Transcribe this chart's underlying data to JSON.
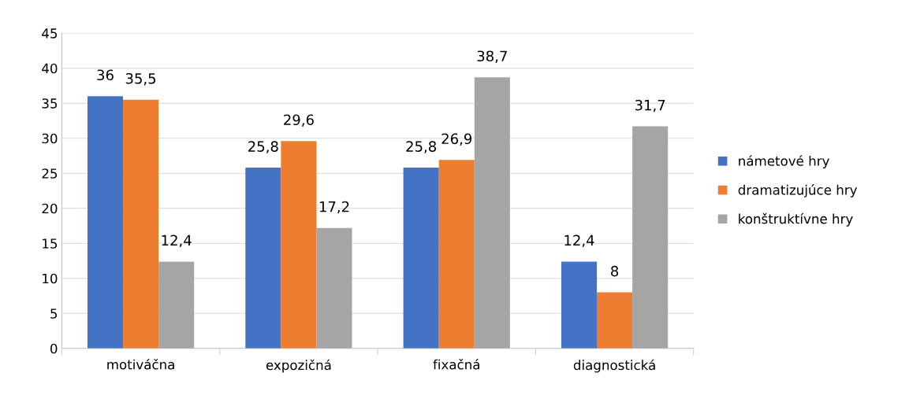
{
  "chart_data": {
    "type": "bar",
    "categories": [
      "motiváčna",
      "expozičná",
      "fixačná",
      "diagnostická"
    ],
    "series": [
      {
        "name": "námetové hry",
        "color": "#4472c4",
        "values": [
          36,
          25.8,
          25.8,
          12.4
        ],
        "value_labels": [
          "36",
          "25,8",
          "25,8",
          "12,4"
        ]
      },
      {
        "name": "dramatizujúce hry",
        "color": "#ed7d31",
        "values": [
          35.5,
          29.6,
          26.9,
          8
        ],
        "value_labels": [
          "35,5",
          "29,6",
          "26,9",
          "8"
        ]
      },
      {
        "name": "konštruktívne hry",
        "color": "#a5a5a5",
        "values": [
          12.4,
          17.2,
          38.7,
          31.7
        ],
        "value_labels": [
          "12,4",
          "17,2",
          "38,7",
          "31,7"
        ]
      }
    ],
    "ylim": [
      0,
      45
    ],
    "yticks": [
      0,
      5,
      10,
      15,
      20,
      25,
      30,
      35,
      40,
      45
    ],
    "grid": "y",
    "legend": "right"
  }
}
